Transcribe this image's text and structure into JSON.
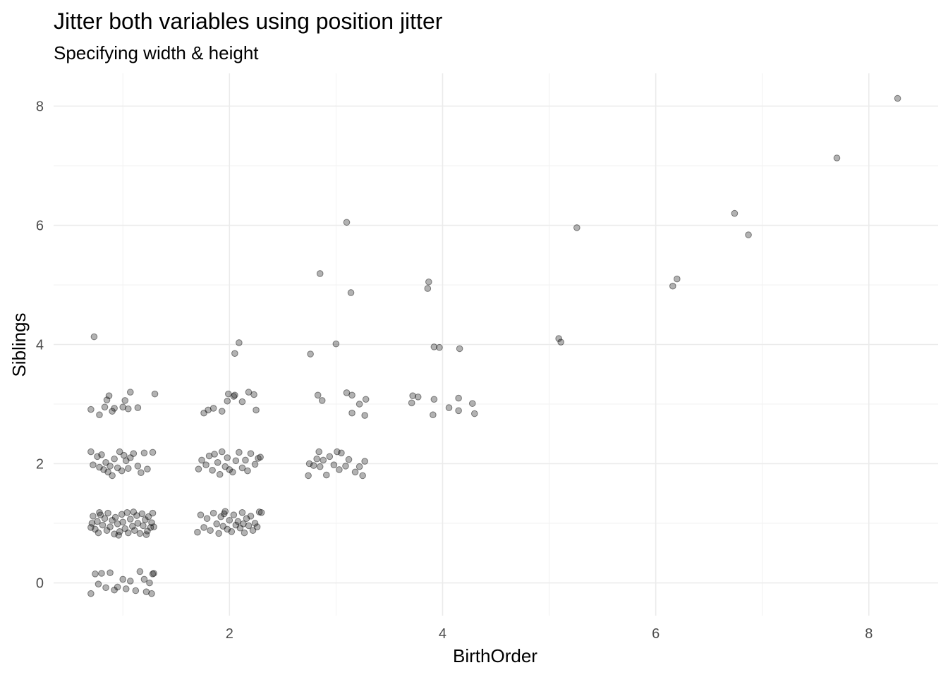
{
  "chart_data": {
    "type": "scatter",
    "title": "Jitter both variables using position jitter",
    "subtitle": "Specifying width & height",
    "xlabel": "BirthOrder",
    "ylabel": "Siblings",
    "xlim": [
      0.35,
      8.65
    ],
    "ylim": [
      -0.55,
      8.55
    ],
    "x_ticks": [
      "2",
      "4",
      "6",
      "8"
    ],
    "y_ticks": [
      "0",
      "2",
      "4",
      "6",
      "8"
    ],
    "grid": true,
    "colors": {
      "point": "#000000",
      "grid": "#ebebeb",
      "background": "#ffffff"
    },
    "points": [
      [
        0.7,
        -0.18
      ],
      [
        0.74,
        0.15
      ],
      [
        0.77,
        -0.02
      ],
      [
        0.8,
        0.16
      ],
      [
        0.84,
        -0.08
      ],
      [
        0.88,
        0.17
      ],
      [
        0.92,
        -0.12
      ],
      [
        0.95,
        -0.07
      ],
      [
        1.0,
        0.06
      ],
      [
        1.03,
        -0.1
      ],
      [
        1.07,
        0.03
      ],
      [
        1.12,
        -0.13
      ],
      [
        1.16,
        0.19
      ],
      [
        1.2,
        0.06
      ],
      [
        1.22,
        -0.15
      ],
      [
        1.25,
        0.0
      ],
      [
        1.27,
        -0.18
      ],
      [
        1.28,
        0.15
      ],
      [
        1.29,
        0.16
      ],
      [
        0.7,
        0.93
      ],
      [
        0.71,
        1.0
      ],
      [
        0.72,
        1.12
      ],
      [
        0.74,
        0.9
      ],
      [
        0.76,
        1.03
      ],
      [
        0.77,
        0.84
      ],
      [
        0.79,
        1.14
      ],
      [
        0.81,
        0.97
      ],
      [
        0.83,
        1.08
      ],
      [
        0.85,
        0.88
      ],
      [
        0.86,
        1.17
      ],
      [
        0.88,
        0.94
      ],
      [
        0.9,
        1.05
      ],
      [
        0.92,
        0.82
      ],
      [
        0.93,
        1.1
      ],
      [
        0.95,
        0.99
      ],
      [
        0.97,
        0.86
      ],
      [
        0.99,
        1.15
      ],
      [
        1.0,
        1.02
      ],
      [
        1.02,
        0.91
      ],
      [
        1.04,
        1.18
      ],
      [
        1.05,
        0.84
      ],
      [
        1.07,
        1.07
      ],
      [
        1.09,
        0.95
      ],
      [
        1.11,
        0.88
      ],
      [
        1.13,
        1.13
      ],
      [
        1.14,
        1.0
      ],
      [
        1.16,
        0.83
      ],
      [
        1.18,
        1.16
      ],
      [
        1.19,
        0.96
      ],
      [
        1.21,
        1.06
      ],
      [
        1.23,
        0.87
      ],
      [
        1.24,
        1.11
      ],
      [
        1.26,
        0.93
      ],
      [
        1.27,
        1.01
      ],
      [
        1.28,
        1.17
      ],
      [
        1.29,
        0.94
      ],
      [
        0.78,
        1.18
      ],
      [
        0.96,
        0.8
      ],
      [
        1.1,
        1.19
      ],
      [
        1.22,
        0.81
      ],
      [
        0.7,
        2.2
      ],
      [
        0.72,
        1.98
      ],
      [
        0.76,
        2.12
      ],
      [
        0.78,
        1.94
      ],
      [
        0.8,
        2.15
      ],
      [
        0.82,
        1.9
      ],
      [
        0.84,
        2.02
      ],
      [
        0.86,
        1.86
      ],
      [
        0.88,
        1.96
      ],
      [
        0.9,
        1.8
      ],
      [
        0.92,
        2.08
      ],
      [
        0.95,
        1.93
      ],
      [
        0.97,
        2.2
      ],
      [
        0.99,
        1.88
      ],
      [
        1.01,
        2.14
      ],
      [
        1.03,
        2.05
      ],
      [
        1.05,
        1.92
      ],
      [
        1.07,
        2.1
      ],
      [
        1.1,
        2.17
      ],
      [
        1.14,
        1.96
      ],
      [
        1.17,
        1.85
      ],
      [
        1.2,
        2.18
      ],
      [
        1.23,
        1.91
      ],
      [
        1.28,
        2.19
      ],
      [
        0.7,
        2.91
      ],
      [
        0.78,
        2.82
      ],
      [
        0.83,
        2.95
      ],
      [
        0.85,
        3.07
      ],
      [
        0.87,
        3.14
      ],
      [
        0.9,
        2.88
      ],
      [
        0.92,
        2.93
      ],
      [
        1.0,
        2.95
      ],
      [
        1.02,
        3.06
      ],
      [
        1.05,
        2.92
      ],
      [
        1.07,
        3.2
      ],
      [
        1.14,
        2.94
      ],
      [
        1.3,
        3.17
      ],
      [
        0.73,
        4.13
      ],
      [
        1.7,
        0.85
      ],
      [
        1.73,
        1.14
      ],
      [
        1.76,
        0.93
      ],
      [
        1.79,
        1.08
      ],
      [
        1.82,
        0.88
      ],
      [
        1.85,
        1.17
      ],
      [
        1.88,
        0.99
      ],
      [
        1.9,
        0.83
      ],
      [
        1.92,
        1.11
      ],
      [
        1.94,
        0.95
      ],
      [
        1.96,
        1.2
      ],
      [
        1.98,
        0.9
      ],
      [
        2.0,
        1.05
      ],
      [
        2.02,
        0.86
      ],
      [
        2.04,
        1.14
      ],
      [
        2.06,
        0.97
      ],
      [
        2.08,
        1.03
      ],
      [
        2.1,
        0.92
      ],
      [
        2.12,
        1.18
      ],
      [
        2.14,
        0.84
      ],
      [
        2.16,
        1.08
      ],
      [
        2.18,
        0.96
      ],
      [
        2.2,
        1.12
      ],
      [
        2.22,
        0.88
      ],
      [
        2.24,
        1.0
      ],
      [
        2.26,
        0.94
      ],
      [
        2.28,
        1.19
      ],
      [
        2.3,
        1.18
      ],
      [
        1.95,
        1.16
      ],
      [
        2.13,
        0.99
      ],
      [
        1.71,
        1.91
      ],
      [
        1.74,
        2.06
      ],
      [
        1.78,
        1.98
      ],
      [
        1.81,
        2.13
      ],
      [
        1.84,
        1.89
      ],
      [
        1.86,
        2.16
      ],
      [
        1.89,
        2.02
      ],
      [
        1.91,
        1.82
      ],
      [
        1.93,
        2.2
      ],
      [
        1.96,
        1.95
      ],
      [
        1.98,
        2.1
      ],
      [
        2.0,
        1.9
      ],
      [
        2.03,
        1.86
      ],
      [
        2.06,
        2.05
      ],
      [
        2.09,
        2.19
      ],
      [
        2.12,
        1.93
      ],
      [
        2.15,
        2.06
      ],
      [
        2.17,
        1.88
      ],
      [
        2.2,
        2.17
      ],
      [
        2.24,
        1.99
      ],
      [
        2.27,
        2.09
      ],
      [
        2.29,
        2.11
      ],
      [
        1.76,
        2.85
      ],
      [
        1.8,
        2.9
      ],
      [
        1.85,
        2.93
      ],
      [
        1.93,
        2.88
      ],
      [
        1.98,
        3.05
      ],
      [
        1.99,
        3.17
      ],
      [
        2.04,
        3.13
      ],
      [
        2.05,
        3.15
      ],
      [
        2.12,
        3.04
      ],
      [
        2.18,
        3.2
      ],
      [
        2.23,
        3.16
      ],
      [
        2.25,
        2.9
      ],
      [
        2.05,
        3.85
      ],
      [
        2.09,
        4.03
      ],
      [
        2.74,
        1.8
      ],
      [
        2.75,
        2.0
      ],
      [
        2.79,
        1.97
      ],
      [
        2.82,
        2.08
      ],
      [
        2.84,
        2.2
      ],
      [
        2.85,
        1.95
      ],
      [
        2.88,
        2.06
      ],
      [
        2.91,
        1.81
      ],
      [
        2.94,
        2.12
      ],
      [
        2.98,
        1.98
      ],
      [
        3.01,
        2.2
      ],
      [
        3.03,
        1.9
      ],
      [
        3.05,
        2.18
      ],
      [
        3.09,
        1.96
      ],
      [
        3.12,
        2.07
      ],
      [
        3.18,
        1.86
      ],
      [
        3.22,
        1.95
      ],
      [
        3.25,
        1.8
      ],
      [
        3.27,
        2.04
      ],
      [
        2.76,
        3.84
      ],
      [
        2.83,
        3.15
      ],
      [
        2.87,
        3.06
      ],
      [
        3.1,
        3.19
      ],
      [
        3.15,
        3.15
      ],
      [
        3.15,
        2.85
      ],
      [
        3.22,
        3.0
      ],
      [
        3.27,
        2.81
      ],
      [
        3.28,
        3.08
      ],
      [
        3.0,
        4.01
      ],
      [
        2.85,
        5.19
      ],
      [
        3.1,
        6.05
      ],
      [
        3.14,
        4.87
      ],
      [
        3.71,
        3.02
      ],
      [
        3.72,
        3.14
      ],
      [
        3.77,
        3.12
      ],
      [
        3.92,
        3.08
      ],
      [
        3.91,
        2.82
      ],
      [
        4.06,
        2.94
      ],
      [
        4.15,
        3.1
      ],
      [
        4.15,
        2.89
      ],
      [
        4.28,
        3.01
      ],
      [
        4.3,
        2.84
      ],
      [
        3.92,
        3.96
      ],
      [
        3.97,
        3.95
      ],
      [
        4.16,
        3.93
      ],
      [
        3.86,
        4.94
      ],
      [
        3.87,
        5.05
      ],
      [
        5.09,
        4.1
      ],
      [
        5.11,
        4.04
      ],
      [
        5.26,
        5.96
      ],
      [
        6.16,
        4.98
      ],
      [
        6.2,
        5.1
      ],
      [
        6.74,
        6.2
      ],
      [
        6.87,
        5.84
      ],
      [
        7.7,
        7.13
      ],
      [
        8.27,
        8.13
      ]
    ]
  }
}
